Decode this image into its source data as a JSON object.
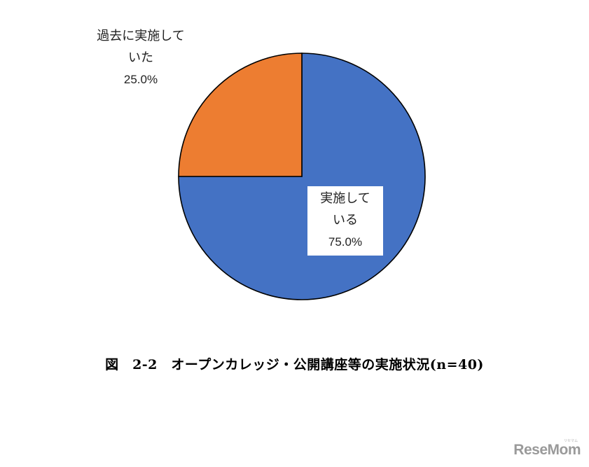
{
  "chart_data": {
    "type": "pie",
    "title": "",
    "slices": [
      {
        "label_lines": [
          "実施して",
          "いる"
        ],
        "value": 75.0,
        "value_label": "75.0%",
        "color": "#4472C4"
      },
      {
        "label_lines": [
          "過去に実施して",
          "いた"
        ],
        "value": 25.0,
        "value_label": "25.0%",
        "color": "#ED7D31"
      }
    ],
    "edge_color": "#000000",
    "start_angle_deg": 0,
    "direction": "clockwise"
  },
  "caption": "図　2-2　オープンカレッジ・公開講座等の実施状況(n=40)",
  "watermark": "ReseMom",
  "watermark_small": "リセマム"
}
